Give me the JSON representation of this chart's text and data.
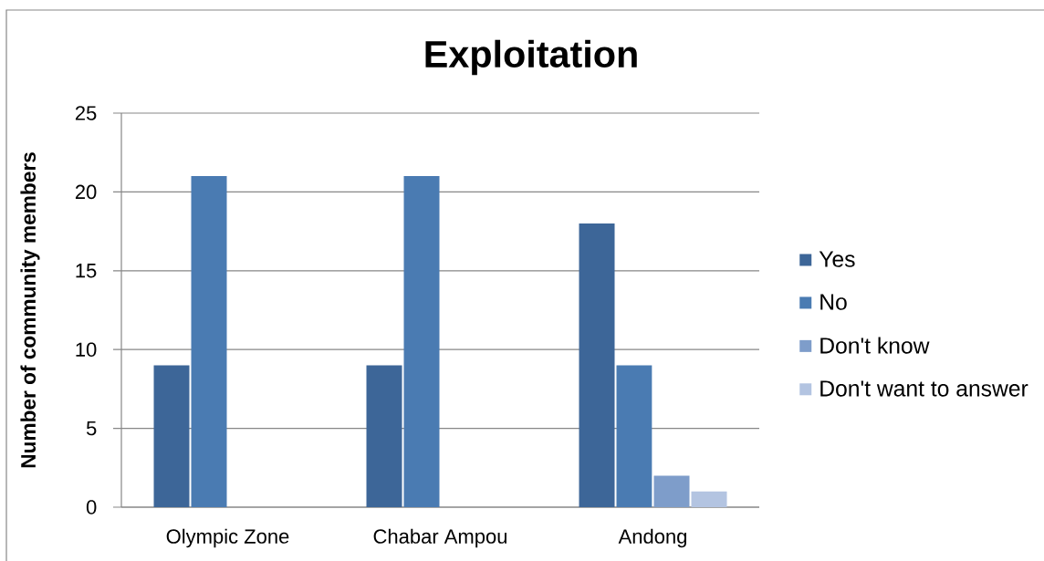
{
  "chart_data": {
    "type": "bar",
    "title": "Exploitation",
    "ylabel": "Number of community members",
    "categories": [
      "Olympic Zone",
      "Chabar Ampou",
      "Andong"
    ],
    "series": [
      {
        "name": "Yes",
        "color": "#3d6698",
        "values": [
          9,
          9,
          18
        ]
      },
      {
        "name": "No",
        "color": "#4a7bb2",
        "values": [
          21,
          21,
          9
        ]
      },
      {
        "name": "Don't know",
        "color": "#7e9dca",
        "values": [
          0,
          0,
          2
        ]
      },
      {
        "name": "Don't want to answer",
        "color": "#b3c4e1",
        "values": [
          0,
          0,
          1
        ]
      }
    ],
    "ylim": [
      0,
      25
    ],
    "yticks": [
      0,
      5,
      10,
      15,
      20,
      25
    ],
    "grid": "y",
    "legend": "right"
  }
}
